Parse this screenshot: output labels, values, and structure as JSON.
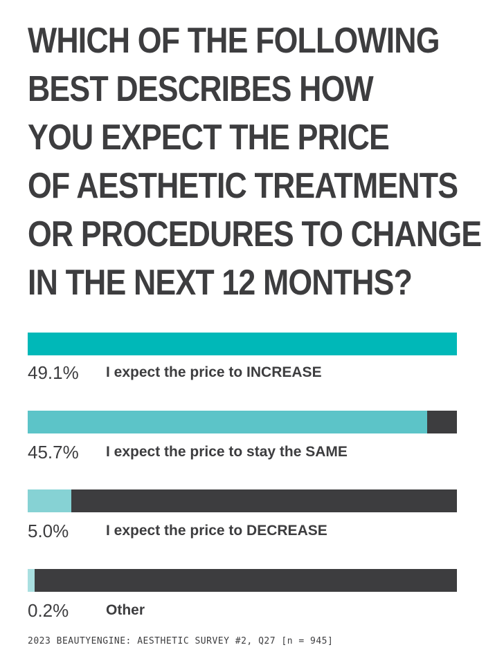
{
  "chart_data": {
    "type": "bar",
    "title_lines": [
      "WHICH OF THE FOLLOWING",
      "BEST DESCRIBES HOW",
      "YOU EXPECT THE PRICE",
      "OF AESTHETIC TREATMENTS",
      "OR PROCEDURES TO CHANGE",
      "IN THE NEXT 12 MONTHS?"
    ],
    "categories": [
      "I expect the price to INCREASE",
      "I expect the price to stay the SAME",
      "I expect the price to DECREASE",
      "Other"
    ],
    "value_labels": [
      "49.1%",
      "45.7%",
      "5.0%",
      "0.2%"
    ],
    "values": [
      49.1,
      45.7,
      5.0,
      0.2
    ],
    "max_value": 49.1,
    "bar_colors": [
      "#00b8b8",
      "#5cc4c8",
      "#86d2d4",
      "#a9dfe0"
    ],
    "track_color": "#3d3d3f",
    "source": "2023 BEAUTYENGINE: AESTHETIC SURVEY #2, Q27 [n = 945]"
  }
}
